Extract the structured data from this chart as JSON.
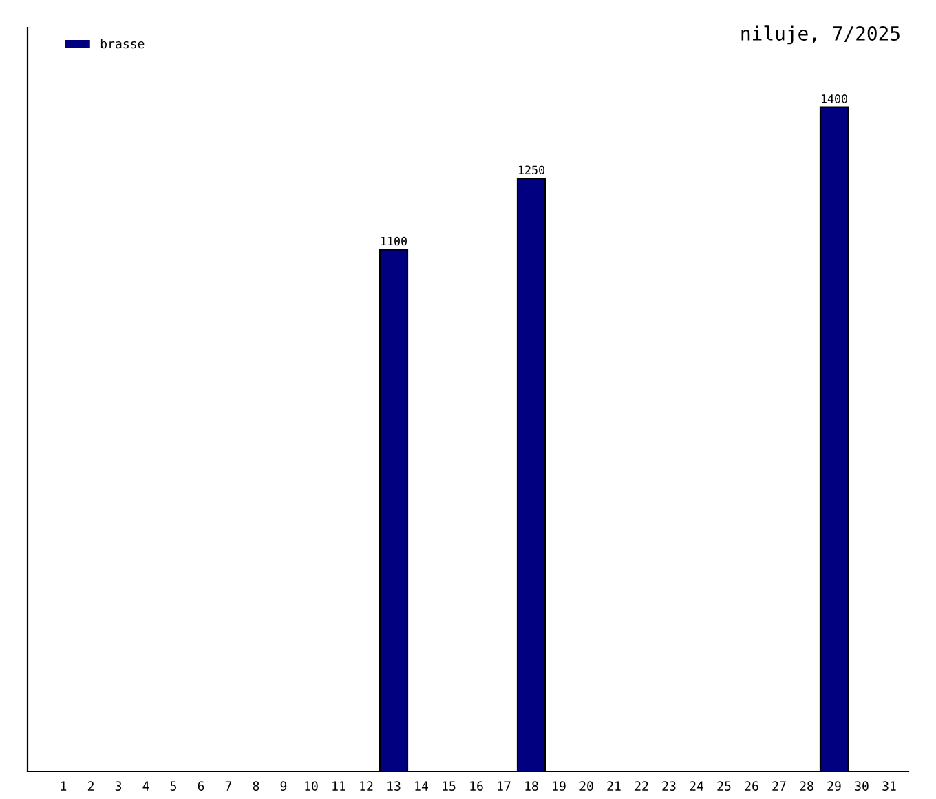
{
  "chart_data": {
    "type": "bar",
    "title": "niluje, 7/2025",
    "categories": [
      "1",
      "2",
      "3",
      "4",
      "5",
      "6",
      "7",
      "8",
      "9",
      "10",
      "11",
      "12",
      "13",
      "14",
      "15",
      "16",
      "17",
      "18",
      "19",
      "20",
      "21",
      "22",
      "23",
      "24",
      "25",
      "26",
      "27",
      "28",
      "29",
      "30",
      "31"
    ],
    "series": [
      {
        "name": "brasse",
        "color": "#000080",
        "values": [
          null,
          null,
          null,
          null,
          null,
          null,
          null,
          null,
          null,
          null,
          null,
          null,
          1100,
          null,
          null,
          null,
          null,
          1250,
          null,
          null,
          null,
          null,
          null,
          null,
          null,
          null,
          null,
          null,
          1400,
          null,
          null
        ]
      }
    ],
    "data_labels": true,
    "legend": "top left",
    "grid": false
  }
}
